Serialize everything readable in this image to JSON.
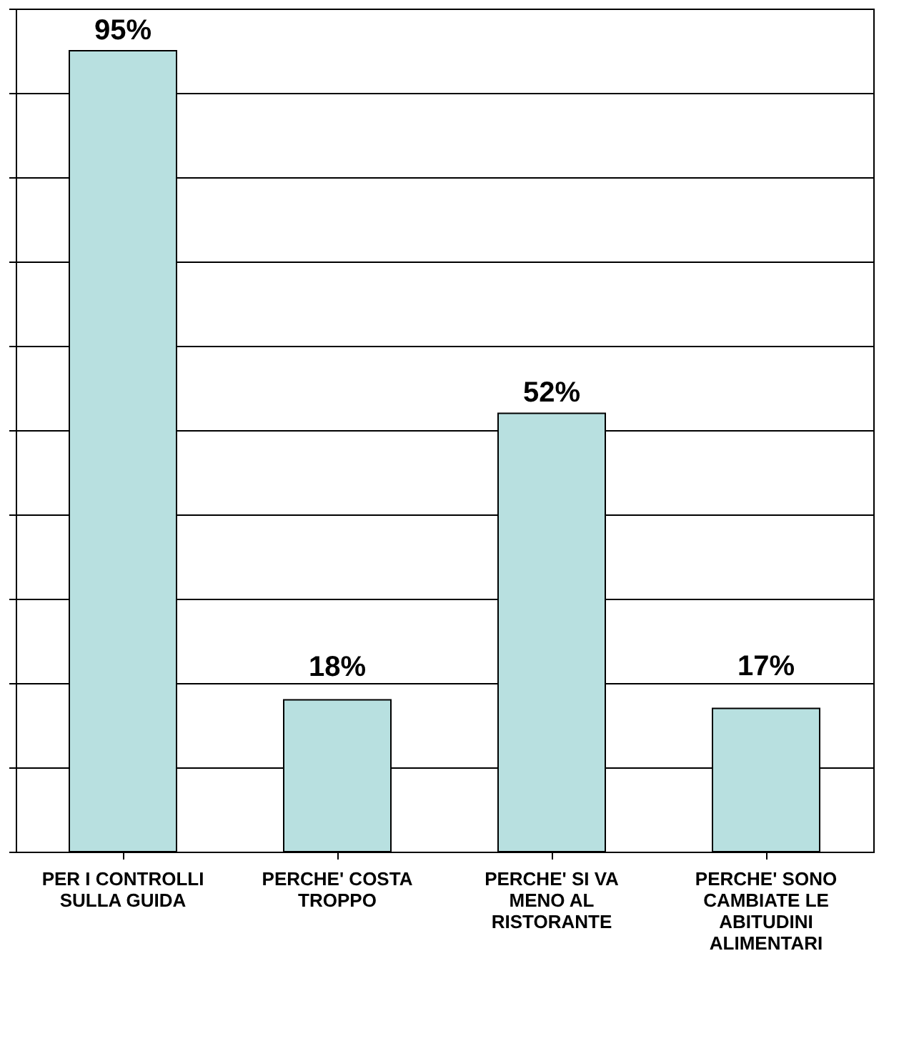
{
  "chart_data": {
    "type": "bar",
    "categories": [
      "PER I CONTROLLI SULLA GUIDA",
      "PERCHE' COSTA TROPPO",
      "PERCHE' SI VA MENO AL RISTORANTE",
      "PERCHE' SONO CAMBIATE LE ABITUDINI ALIMENTARI"
    ],
    "values": [
      95,
      18,
      52,
      17
    ],
    "value_labels": [
      "95%",
      "18%",
      "52%",
      "17%"
    ],
    "color": "#b8e0e0",
    "ylim": [
      0,
      100
    ],
    "yticks": [
      {
        "value": 0,
        "label": null
      },
      {
        "value": 10,
        "label": null
      },
      {
        "value": 20,
        "label": null
      },
      {
        "value": 30,
        "label": null
      },
      {
        "value": 40,
        "label": null
      },
      {
        "value": 50,
        "label": null
      },
      {
        "value": 60,
        "label": null
      },
      {
        "value": 70,
        "label": null
      },
      {
        "value": 80,
        "label": null
      },
      {
        "value": 90,
        "label": null
      },
      {
        "value": 100,
        "label": null
      }
    ],
    "grid": "y",
    "tick_labels": "x"
  }
}
